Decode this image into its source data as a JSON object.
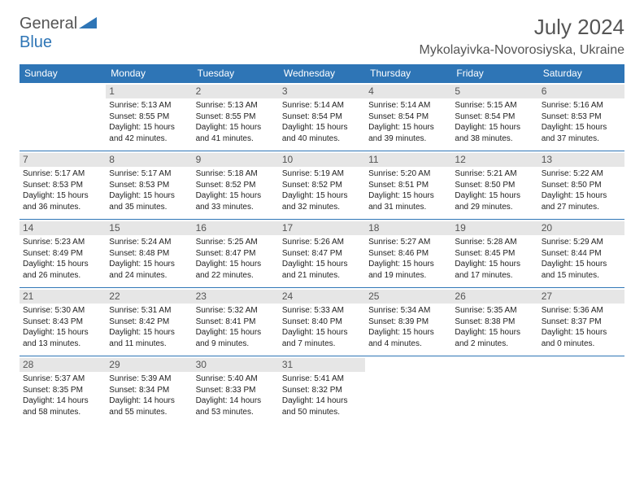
{
  "logo": {
    "general": "General",
    "blue": "Blue"
  },
  "title": "July 2024",
  "location": "Mykolayivka-Novorosiyska, Ukraine",
  "colors": {
    "header_bg": "#2e75b6",
    "header_fg": "#ffffff",
    "daynum_bg": "#e6e6e6",
    "text": "#222222",
    "border": "#2e75b6"
  },
  "typography": {
    "title_fontsize": 26,
    "location_fontsize": 16,
    "header_fontsize": 12,
    "cell_fontsize": 10
  },
  "day_headers": [
    "Sunday",
    "Monday",
    "Tuesday",
    "Wednesday",
    "Thursday",
    "Friday",
    "Saturday"
  ],
  "weeks": [
    [
      {
        "n": "",
        "lines": []
      },
      {
        "n": "1",
        "lines": [
          "Sunrise: 5:13 AM",
          "Sunset: 8:55 PM",
          "Daylight: 15 hours",
          "and 42 minutes."
        ]
      },
      {
        "n": "2",
        "lines": [
          "Sunrise: 5:13 AM",
          "Sunset: 8:55 PM",
          "Daylight: 15 hours",
          "and 41 minutes."
        ]
      },
      {
        "n": "3",
        "lines": [
          "Sunrise: 5:14 AM",
          "Sunset: 8:54 PM",
          "Daylight: 15 hours",
          "and 40 minutes."
        ]
      },
      {
        "n": "4",
        "lines": [
          "Sunrise: 5:14 AM",
          "Sunset: 8:54 PM",
          "Daylight: 15 hours",
          "and 39 minutes."
        ]
      },
      {
        "n": "5",
        "lines": [
          "Sunrise: 5:15 AM",
          "Sunset: 8:54 PM",
          "Daylight: 15 hours",
          "and 38 minutes."
        ]
      },
      {
        "n": "6",
        "lines": [
          "Sunrise: 5:16 AM",
          "Sunset: 8:53 PM",
          "Daylight: 15 hours",
          "and 37 minutes."
        ]
      }
    ],
    [
      {
        "n": "7",
        "lines": [
          "Sunrise: 5:17 AM",
          "Sunset: 8:53 PM",
          "Daylight: 15 hours",
          "and 36 minutes."
        ]
      },
      {
        "n": "8",
        "lines": [
          "Sunrise: 5:17 AM",
          "Sunset: 8:53 PM",
          "Daylight: 15 hours",
          "and 35 minutes."
        ]
      },
      {
        "n": "9",
        "lines": [
          "Sunrise: 5:18 AM",
          "Sunset: 8:52 PM",
          "Daylight: 15 hours",
          "and 33 minutes."
        ]
      },
      {
        "n": "10",
        "lines": [
          "Sunrise: 5:19 AM",
          "Sunset: 8:52 PM",
          "Daylight: 15 hours",
          "and 32 minutes."
        ]
      },
      {
        "n": "11",
        "lines": [
          "Sunrise: 5:20 AM",
          "Sunset: 8:51 PM",
          "Daylight: 15 hours",
          "and 31 minutes."
        ]
      },
      {
        "n": "12",
        "lines": [
          "Sunrise: 5:21 AM",
          "Sunset: 8:50 PM",
          "Daylight: 15 hours",
          "and 29 minutes."
        ]
      },
      {
        "n": "13",
        "lines": [
          "Sunrise: 5:22 AM",
          "Sunset: 8:50 PM",
          "Daylight: 15 hours",
          "and 27 minutes."
        ]
      }
    ],
    [
      {
        "n": "14",
        "lines": [
          "Sunrise: 5:23 AM",
          "Sunset: 8:49 PM",
          "Daylight: 15 hours",
          "and 26 minutes."
        ]
      },
      {
        "n": "15",
        "lines": [
          "Sunrise: 5:24 AM",
          "Sunset: 8:48 PM",
          "Daylight: 15 hours",
          "and 24 minutes."
        ]
      },
      {
        "n": "16",
        "lines": [
          "Sunrise: 5:25 AM",
          "Sunset: 8:47 PM",
          "Daylight: 15 hours",
          "and 22 minutes."
        ]
      },
      {
        "n": "17",
        "lines": [
          "Sunrise: 5:26 AM",
          "Sunset: 8:47 PM",
          "Daylight: 15 hours",
          "and 21 minutes."
        ]
      },
      {
        "n": "18",
        "lines": [
          "Sunrise: 5:27 AM",
          "Sunset: 8:46 PM",
          "Daylight: 15 hours",
          "and 19 minutes."
        ]
      },
      {
        "n": "19",
        "lines": [
          "Sunrise: 5:28 AM",
          "Sunset: 8:45 PM",
          "Daylight: 15 hours",
          "and 17 minutes."
        ]
      },
      {
        "n": "20",
        "lines": [
          "Sunrise: 5:29 AM",
          "Sunset: 8:44 PM",
          "Daylight: 15 hours",
          "and 15 minutes."
        ]
      }
    ],
    [
      {
        "n": "21",
        "lines": [
          "Sunrise: 5:30 AM",
          "Sunset: 8:43 PM",
          "Daylight: 15 hours",
          "and 13 minutes."
        ]
      },
      {
        "n": "22",
        "lines": [
          "Sunrise: 5:31 AM",
          "Sunset: 8:42 PM",
          "Daylight: 15 hours",
          "and 11 minutes."
        ]
      },
      {
        "n": "23",
        "lines": [
          "Sunrise: 5:32 AM",
          "Sunset: 8:41 PM",
          "Daylight: 15 hours",
          "and 9 minutes."
        ]
      },
      {
        "n": "24",
        "lines": [
          "Sunrise: 5:33 AM",
          "Sunset: 8:40 PM",
          "Daylight: 15 hours",
          "and 7 minutes."
        ]
      },
      {
        "n": "25",
        "lines": [
          "Sunrise: 5:34 AM",
          "Sunset: 8:39 PM",
          "Daylight: 15 hours",
          "and 4 minutes."
        ]
      },
      {
        "n": "26",
        "lines": [
          "Sunrise: 5:35 AM",
          "Sunset: 8:38 PM",
          "Daylight: 15 hours",
          "and 2 minutes."
        ]
      },
      {
        "n": "27",
        "lines": [
          "Sunrise: 5:36 AM",
          "Sunset: 8:37 PM",
          "Daylight: 15 hours",
          "and 0 minutes."
        ]
      }
    ],
    [
      {
        "n": "28",
        "lines": [
          "Sunrise: 5:37 AM",
          "Sunset: 8:35 PM",
          "Daylight: 14 hours",
          "and 58 minutes."
        ]
      },
      {
        "n": "29",
        "lines": [
          "Sunrise: 5:39 AM",
          "Sunset: 8:34 PM",
          "Daylight: 14 hours",
          "and 55 minutes."
        ]
      },
      {
        "n": "30",
        "lines": [
          "Sunrise: 5:40 AM",
          "Sunset: 8:33 PM",
          "Daylight: 14 hours",
          "and 53 minutes."
        ]
      },
      {
        "n": "31",
        "lines": [
          "Sunrise: 5:41 AM",
          "Sunset: 8:32 PM",
          "Daylight: 14 hours",
          "and 50 minutes."
        ]
      },
      {
        "n": "",
        "lines": []
      },
      {
        "n": "",
        "lines": []
      },
      {
        "n": "",
        "lines": []
      }
    ]
  ]
}
